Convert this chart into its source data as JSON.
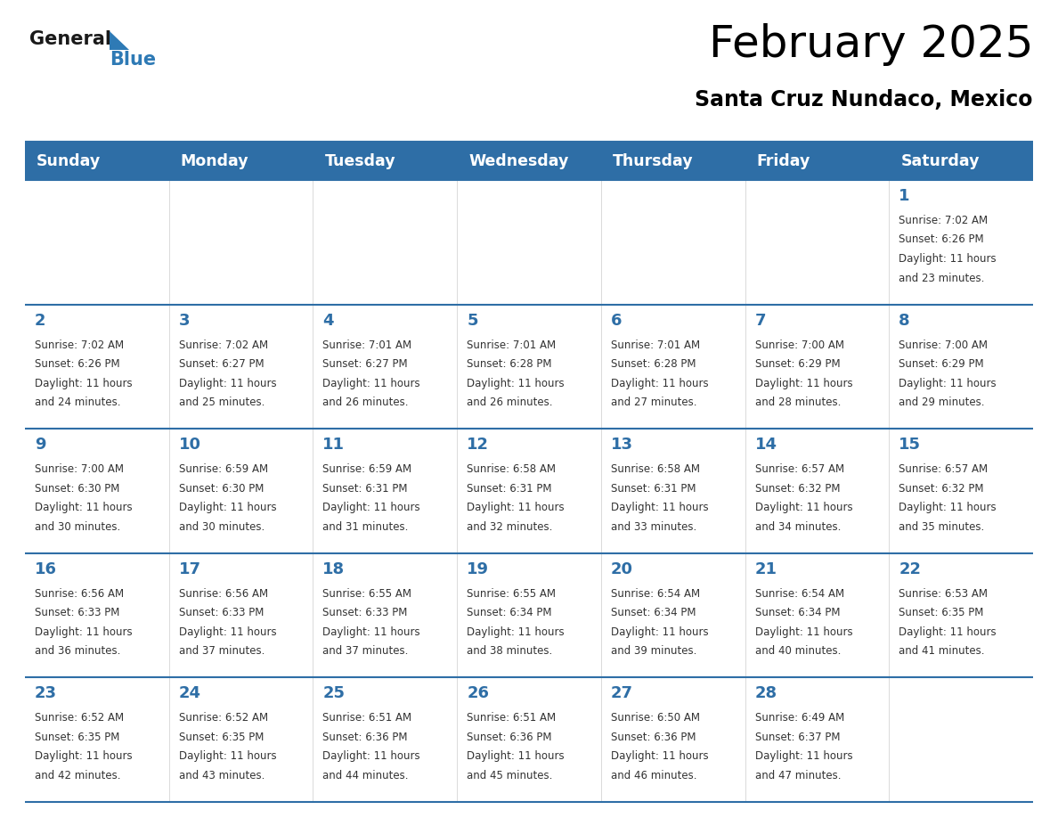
{
  "title": "February 2025",
  "subtitle": "Santa Cruz Nundaco, Mexico",
  "days_of_week": [
    "Sunday",
    "Monday",
    "Tuesday",
    "Wednesday",
    "Thursday",
    "Friday",
    "Saturday"
  ],
  "header_bg": "#2E6EA6",
  "header_text_color": "#FFFFFF",
  "divider_color": "#2E6EA6",
  "text_color": "#333333",
  "day_num_color": "#2E6EA6",
  "logo_general_color": "#1A1A1A",
  "logo_blue_color": "#2E7AB5",
  "cell_bg": "#FFFFFF",
  "calendar_data": [
    [
      null,
      null,
      null,
      null,
      null,
      null,
      1
    ],
    [
      2,
      3,
      4,
      5,
      6,
      7,
      8
    ],
    [
      9,
      10,
      11,
      12,
      13,
      14,
      15
    ],
    [
      16,
      17,
      18,
      19,
      20,
      21,
      22
    ],
    [
      23,
      24,
      25,
      26,
      27,
      28,
      null
    ]
  ],
  "sunrise_data": {
    "1": "7:02 AM",
    "2": "7:02 AM",
    "3": "7:02 AM",
    "4": "7:01 AM",
    "5": "7:01 AM",
    "6": "7:01 AM",
    "7": "7:00 AM",
    "8": "7:00 AM",
    "9": "7:00 AM",
    "10": "6:59 AM",
    "11": "6:59 AM",
    "12": "6:58 AM",
    "13": "6:58 AM",
    "14": "6:57 AM",
    "15": "6:57 AM",
    "16": "6:56 AM",
    "17": "6:56 AM",
    "18": "6:55 AM",
    "19": "6:55 AM",
    "20": "6:54 AM",
    "21": "6:54 AM",
    "22": "6:53 AM",
    "23": "6:52 AM",
    "24": "6:52 AM",
    "25": "6:51 AM",
    "26": "6:51 AM",
    "27": "6:50 AM",
    "28": "6:49 AM"
  },
  "sunset_data": {
    "1": "6:26 PM",
    "2": "6:26 PM",
    "3": "6:27 PM",
    "4": "6:27 PM",
    "5": "6:28 PM",
    "6": "6:28 PM",
    "7": "6:29 PM",
    "8": "6:29 PM",
    "9": "6:30 PM",
    "10": "6:30 PM",
    "11": "6:31 PM",
    "12": "6:31 PM",
    "13": "6:31 PM",
    "14": "6:32 PM",
    "15": "6:32 PM",
    "16": "6:33 PM",
    "17": "6:33 PM",
    "18": "6:33 PM",
    "19": "6:34 PM",
    "20": "6:34 PM",
    "21": "6:34 PM",
    "22": "6:35 PM",
    "23": "6:35 PM",
    "24": "6:35 PM",
    "25": "6:36 PM",
    "26": "6:36 PM",
    "27": "6:36 PM",
    "28": "6:37 PM"
  },
  "daylight_minutes": {
    "1": "and 23 minutes.",
    "2": "and 24 minutes.",
    "3": "and 25 minutes.",
    "4": "and 26 minutes.",
    "5": "and 26 minutes.",
    "6": "and 27 minutes.",
    "7": "and 28 minutes.",
    "8": "and 29 minutes.",
    "9": "and 30 minutes.",
    "10": "and 30 minutes.",
    "11": "and 31 minutes.",
    "12": "and 32 minutes.",
    "13": "and 33 minutes.",
    "14": "and 34 minutes.",
    "15": "and 35 minutes.",
    "16": "and 36 minutes.",
    "17": "and 37 minutes.",
    "18": "and 37 minutes.",
    "19": "and 38 minutes.",
    "20": "and 39 minutes.",
    "21": "and 40 minutes.",
    "22": "and 41 minutes.",
    "23": "and 42 minutes.",
    "24": "and 43 minutes.",
    "25": "and 44 minutes.",
    "26": "and 45 minutes.",
    "27": "and 46 minutes.",
    "28": "and 47 minutes."
  }
}
